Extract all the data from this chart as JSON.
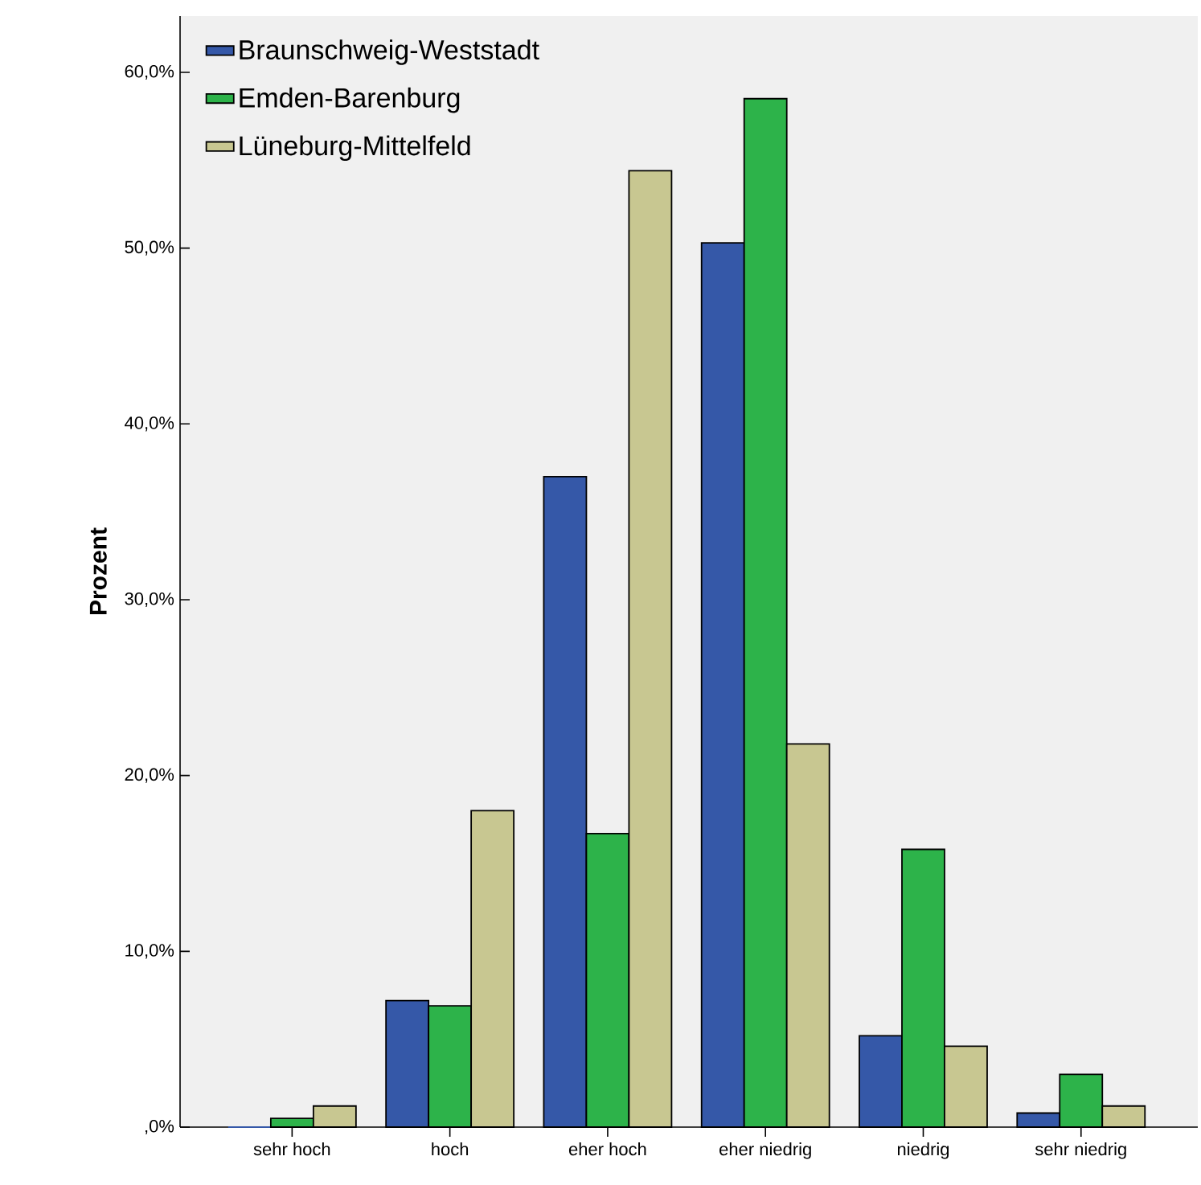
{
  "chart_data": {
    "type": "bar",
    "ylabel": "Prozent",
    "categories": [
      "sehr hoch",
      "hoch",
      "eher hoch",
      "eher niedrig",
      "niedrig",
      "sehr niedrig"
    ],
    "series": [
      {
        "name": "Braunschweig-Weststadt",
        "color": "#3558a8",
        "values": [
          0,
          7.2,
          37.0,
          50.3,
          5.2,
          0.8
        ]
      },
      {
        "name": "Emden-Barenburg",
        "color": "#2db34a",
        "values": [
          0.5,
          6.9,
          16.7,
          58.5,
          15.8,
          3.0
        ]
      },
      {
        "name": "Lüneburg-Mittelfeld",
        "color": "#c8c791",
        "values": [
          1.2,
          18.0,
          54.4,
          21.8,
          4.6,
          1.2
        ]
      }
    ],
    "ylim": [
      0,
      63.2
    ],
    "yticks": [
      {
        "value": 0,
        "label": ",0%"
      },
      {
        "value": 10,
        "label": "10,0%"
      },
      {
        "value": 20,
        "label": "20,0%"
      },
      {
        "value": 30,
        "label": "30,0%"
      },
      {
        "value": 40,
        "label": "40,0%"
      },
      {
        "value": 50,
        "label": "50,0%"
      },
      {
        "value": 60,
        "label": "60,0%"
      }
    ],
    "legend": "top left",
    "grid": false
  }
}
